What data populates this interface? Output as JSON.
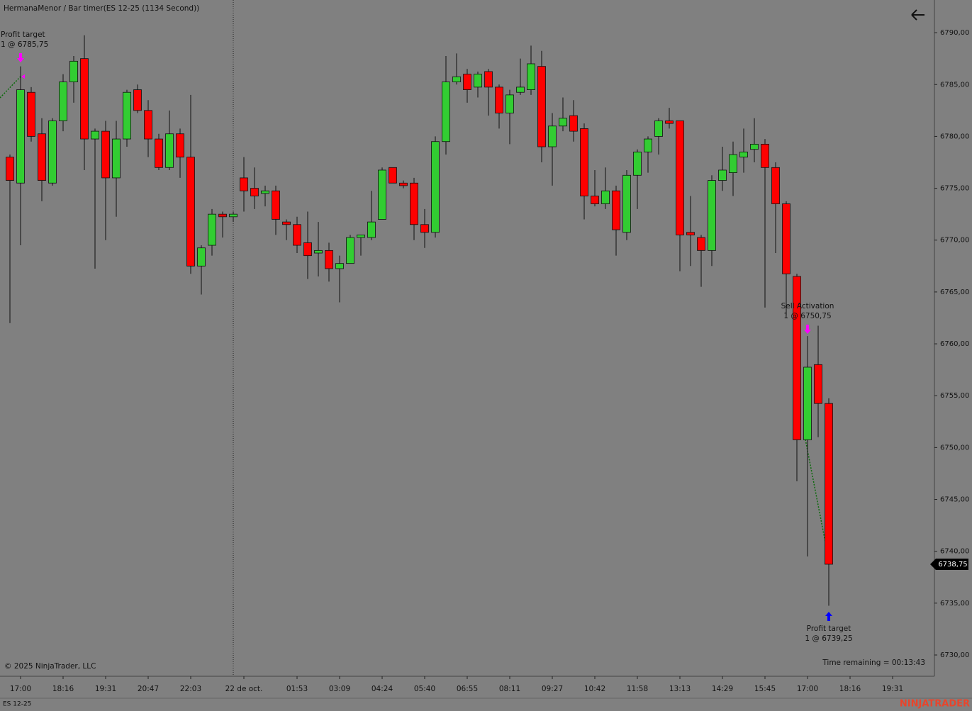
{
  "header": "HermanaMenor / Bar timer(ES 12-25 (1134 Second))",
  "copyright": "© 2025 NinjaTrader, LLC",
  "time_remaining": "Time remaining = 00:13:43",
  "instrument_tab": "ES 12-25",
  "brand": "NINJATRADER",
  "chart_data": {
    "type": "candlestick",
    "categories": [
      null,
      "17:00",
      null,
      null,
      null,
      "18:16",
      null,
      null,
      null,
      "19:31",
      null,
      null,
      null,
      "20:47",
      null,
      null,
      null,
      "22:03",
      null,
      null,
      null,
      null,
      "22 de oct.",
      null,
      null,
      null,
      null,
      "01:53",
      null,
      null,
      null,
      "03:09",
      null,
      null,
      null,
      "04:24",
      null,
      null,
      null,
      "05:40",
      null,
      null,
      null,
      "06:55",
      null,
      null,
      null,
      "08:11",
      null,
      null,
      null,
      "09:27",
      null,
      null,
      null,
      "10:42",
      null,
      null,
      null,
      "11:58",
      null,
      null,
      null,
      "13:13",
      null,
      null,
      null,
      "14:29",
      null,
      null,
      null,
      "15:45",
      null,
      null,
      null,
      "17:00",
      null,
      null,
      null,
      "18:16",
      null,
      null,
      null,
      "19:31"
    ],
    "open": [
      6778.0,
      6775.5,
      6784.25,
      6780.25,
      6775.5,
      6781.5,
      6785.25,
      6787.5,
      6779.75,
      6780.5,
      6776.0,
      6779.75,
      6784.5,
      6782.5,
      6779.75,
      6777.0,
      6780.25,
      6778.0,
      6767.5,
      6769.5,
      6772.5,
      6772.25,
      6776.0,
      6775.0,
      6774.5,
      6774.75,
      6771.75,
      6771.5,
      6769.75,
      6768.75,
      6769.0,
      6767.25,
      6767.75,
      6770.25,
      6770.25,
      6772.0,
      6777.0,
      6775.5,
      6775.5,
      6771.5,
      6770.75,
      6779.5,
      6785.25,
      6786.0,
      6784.75,
      6786.25,
      6784.75,
      6782.25,
      6784.25,
      6784.5,
      6786.75,
      6779.0,
      6781.0,
      6782.0,
      6780.75,
      6774.25,
      6773.5,
      6774.75,
      6770.75,
      6776.25,
      6778.5,
      6780.0,
      6781.5,
      6781.5,
      6770.75,
      6770.25,
      6769.0,
      6775.75,
      6776.5,
      6778.0,
      6778.75,
      6779.25,
      6777.0,
      6773.5,
      6766.5,
      6750.75,
      6758.0,
      6754.25,
      null,
      null,
      null,
      null,
      null,
      null
    ],
    "high": [
      6778.25,
      6786.75,
      6784.75,
      6781.75,
      6781.75,
      6786.0,
      6787.75,
      6789.75,
      6780.75,
      6781.5,
      6781.5,
      6784.5,
      6785.0,
      6783.5,
      6780.25,
      6782.5,
      6780.75,
      6784.0,
      6769.5,
      6773.0,
      6772.75,
      6772.75,
      6778.0,
      6777.0,
      6775.25,
      6775.25,
      6772.0,
      6772.25,
      6772.75,
      6771.75,
      6769.75,
      6768.5,
      6770.5,
      6770.5,
      6774.75,
      6777.0,
      6777.0,
      6775.75,
      6776.0,
      6773.0,
      6780.0,
      6787.75,
      6788.0,
      6786.5,
      6786.25,
      6786.5,
      6785.0,
      6784.5,
      6787.5,
      6788.75,
      6788.25,
      6782.25,
      6783.75,
      6783.5,
      6781.25,
      6776.75,
      6777.0,
      6775.25,
      6776.75,
      6778.75,
      6780.0,
      6781.75,
      6782.75,
      6781.5,
      6774.25,
      6770.5,
      6776.25,
      6779.0,
      6779.5,
      6780.75,
      6781.75,
      6779.75,
      6777.5,
      6773.75,
      6766.75,
      6760.75,
      6761.75,
      6754.75,
      null,
      null,
      null,
      null,
      null,
      null
    ],
    "low": [
      6762.0,
      6769.5,
      6779.5,
      6773.75,
      6775.25,
      6780.5,
      6783.25,
      6776.75,
      6767.25,
      6770.0,
      6772.25,
      6779.0,
      6782.25,
      6778.0,
      6776.75,
      6776.75,
      6776.0,
      6766.75,
      6764.75,
      6768.5,
      6770.25,
      6771.75,
      6772.75,
      6773.0,
      6773.25,
      6770.5,
      6770.0,
      6768.75,
      6766.25,
      6766.5,
      6766.0,
      6764.0,
      6767.75,
      6768.5,
      6770.0,
      6772.0,
      6775.5,
      6775.0,
      6770.0,
      6769.25,
      6770.25,
      6778.25,
      6785.0,
      6783.25,
      6783.75,
      6782.0,
      6780.75,
      6779.25,
      6784.0,
      6784.0,
      6777.5,
      6775.25,
      6780.5,
      6779.5,
      6772.0,
      6773.25,
      6773.0,
      6768.5,
      6770.0,
      6773.0,
      6776.5,
      6778.25,
      6780.75,
      6767.0,
      6767.5,
      6765.5,
      6767.5,
      6774.75,
      6774.25,
      6776.5,
      6777.5,
      6763.5,
      6768.75,
      6762.75,
      6746.75,
      6739.5,
      6751.0,
      6734.75,
      null,
      null,
      null,
      null,
      null,
      null
    ],
    "close": [
      6775.75,
      6784.5,
      6780.0,
      6775.75,
      6781.5,
      6785.25,
      6787.25,
      6779.75,
      6780.5,
      6776.0,
      6779.75,
      6784.25,
      6782.5,
      6779.75,
      6777.0,
      6780.25,
      6778.0,
      6767.5,
      6769.25,
      6772.5,
      6772.25,
      6772.5,
      6774.75,
      6774.25,
      6774.75,
      6772.0,
      6771.5,
      6769.5,
      6768.5,
      6769.0,
      6767.25,
      6767.75,
      6770.25,
      6770.5,
      6771.75,
      6776.75,
      6775.5,
      6775.25,
      6771.5,
      6770.75,
      6779.5,
      6785.25,
      6785.75,
      6784.5,
      6786.0,
      6784.75,
      6782.25,
      6784.0,
      6784.75,
      6787.0,
      6779.0,
      6781.0,
      6781.75,
      6780.5,
      6774.25,
      6773.5,
      6774.75,
      6771.0,
      6776.25,
      6778.5,
      6779.75,
      6781.5,
      6781.25,
      6770.5,
      6770.5,
      6769.0,
      6775.75,
      6776.75,
      6778.25,
      6778.5,
      6779.25,
      6777.0,
      6773.5,
      6766.75,
      6750.75,
      6757.75,
      6754.25,
      6738.75,
      null,
      null,
      null,
      null,
      null,
      null
    ],
    "up_color": "#32cd32",
    "down_color": "#ff0000",
    "ylim": [
      6727.95,
      6793.15
    ],
    "yticks": [
      {
        "value": 6730,
        "label": "6730,00"
      },
      {
        "value": 6735,
        "label": "6735,00"
      },
      {
        "value": 6740,
        "label": "6740,00"
      },
      {
        "value": 6745,
        "label": "6745,00"
      },
      {
        "value": 6750,
        "label": "6750,00"
      },
      {
        "value": 6755,
        "label": "6755,00"
      },
      {
        "value": 6760,
        "label": "6760,00"
      },
      {
        "value": 6765,
        "label": "6765,00"
      },
      {
        "value": 6770,
        "label": "6770,00"
      },
      {
        "value": 6775,
        "label": "6775,00"
      },
      {
        "value": 6780,
        "label": "6780,00"
      },
      {
        "value": 6785,
        "label": "6785,00"
      },
      {
        "value": 6790,
        "label": "6790,00"
      }
    ],
    "last_price": {
      "value": 6738.75,
      "label": "6738,75"
    },
    "grid": false,
    "annotations": [
      {
        "title": "Profit target",
        "detail": "1 @ 6785,75"
      },
      {
        "title": "Sell Activation",
        "detail": "1 @ 6750,75"
      },
      {
        "title": "Profit target",
        "detail": "1 @ 6739,25"
      }
    ]
  }
}
